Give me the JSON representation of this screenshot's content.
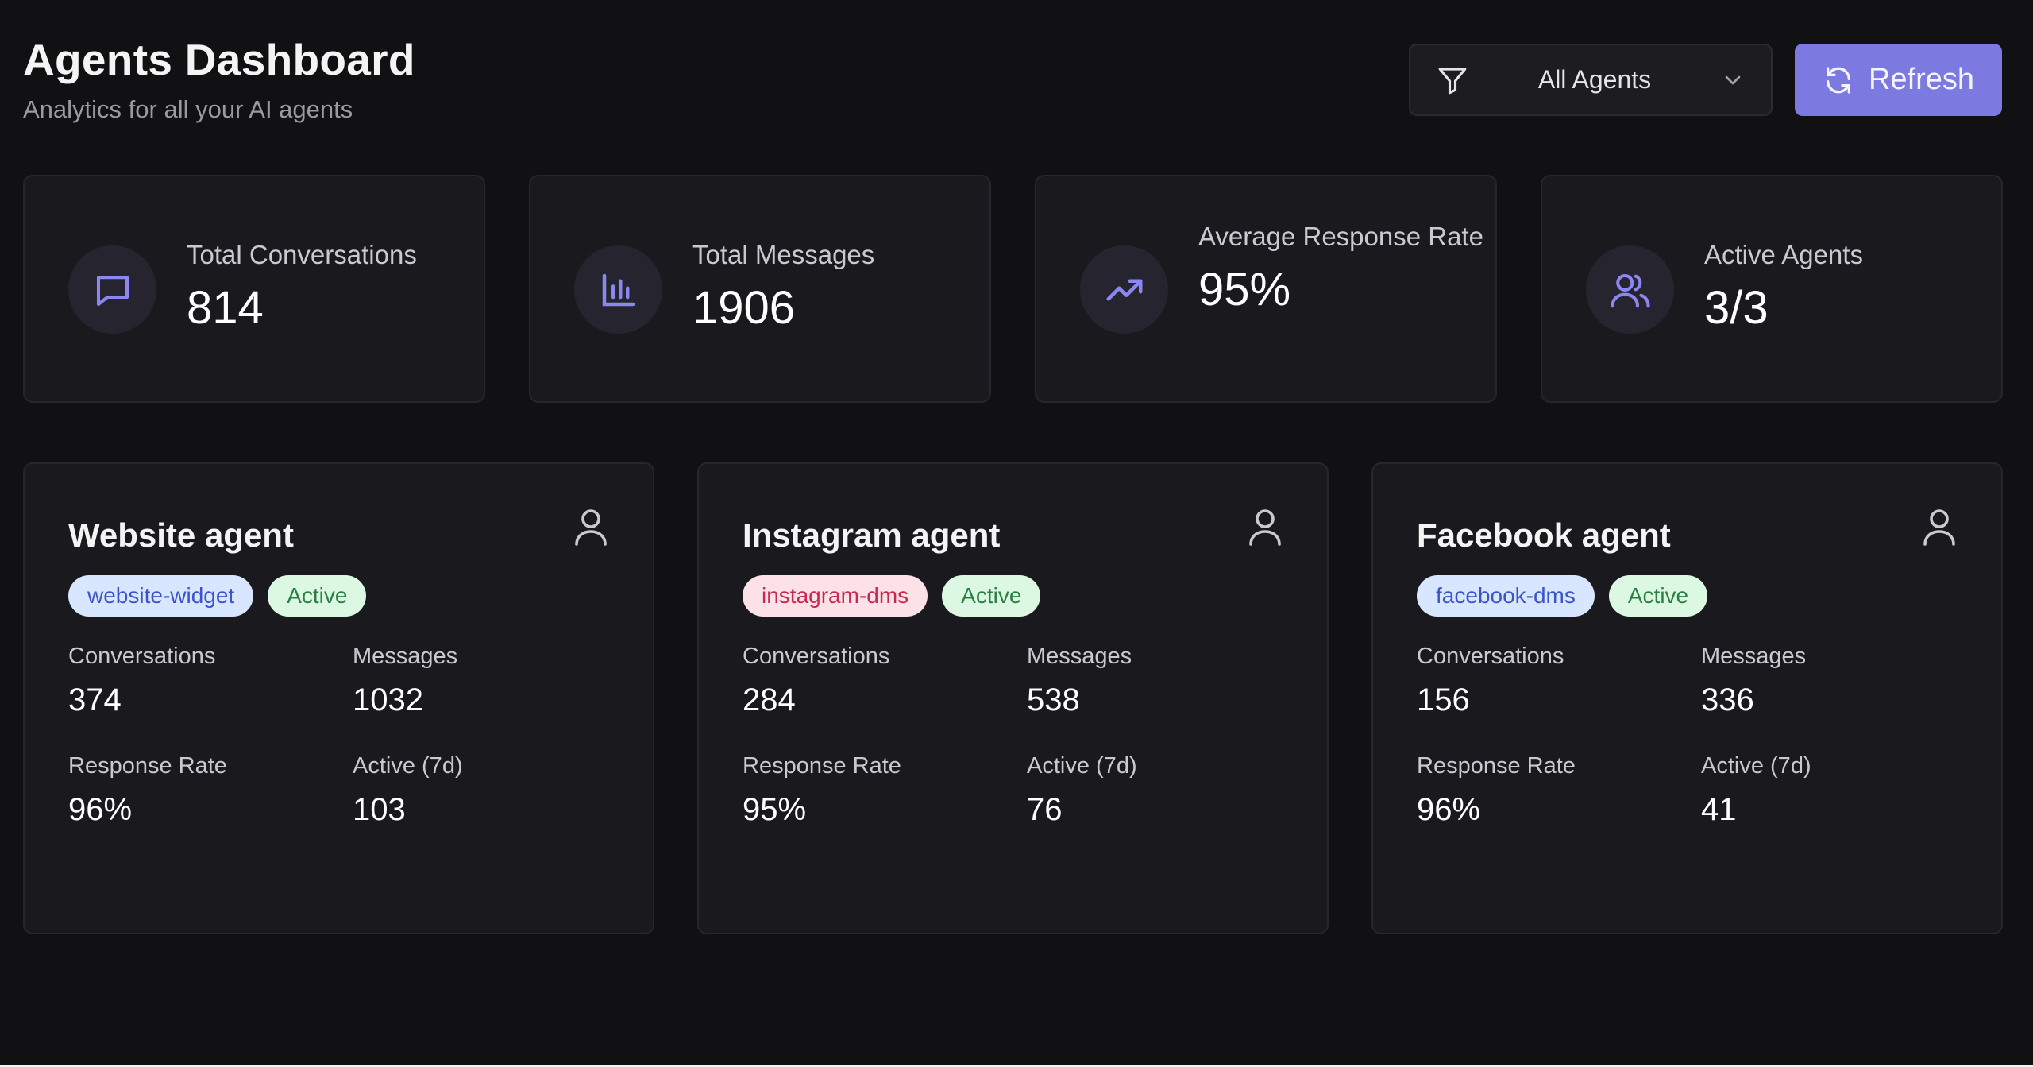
{
  "header": {
    "title": "Agents Dashboard",
    "subtitle": "Analytics for all your AI agents"
  },
  "filter": {
    "selected": "All Agents",
    "icon": "filter-icon"
  },
  "refresh": {
    "label": "Refresh",
    "icon": "refresh-icon"
  },
  "stats": [
    {
      "label": "Total Conversations",
      "value": "814",
      "icon": "message-square-icon"
    },
    {
      "label": "Total Messages",
      "value": "1906",
      "icon": "bar-chart-icon"
    },
    {
      "label": "Average Response Rate",
      "value": "95%",
      "icon": "trending-up-icon"
    },
    {
      "label": "Active Agents",
      "value": "3/3",
      "icon": "users-icon"
    }
  ],
  "agents": [
    {
      "name": "Website agent",
      "channel": "website-widget",
      "status": "Active",
      "conversations_label": "Conversations",
      "conversations": "374",
      "messages_label": "Messages",
      "messages": "1032",
      "response_rate_label": "Response Rate",
      "response_rate": "96%",
      "active_label": "Active (7d)",
      "active": "103"
    },
    {
      "name": "Instagram agent",
      "channel": "instagram-dms",
      "status": "Active",
      "conversations_label": "Conversations",
      "conversations": "284",
      "messages_label": "Messages",
      "messages": "538",
      "response_rate_label": "Response Rate",
      "response_rate": "95%",
      "active_label": "Active (7d)",
      "active": "76"
    },
    {
      "name": "Facebook agent",
      "channel": "facebook-dms",
      "status": "Active",
      "conversations_label": "Conversations",
      "conversations": "156",
      "messages_label": "Messages",
      "messages": "336",
      "response_rate_label": "Response Rate",
      "response_rate": "96%",
      "active_label": "Active (7d)",
      "active": "41"
    }
  ],
  "colors": {
    "accent": "#7c79e1",
    "background": "#111113",
    "card": "#1a1a1e",
    "icon": "#8b87f0"
  }
}
